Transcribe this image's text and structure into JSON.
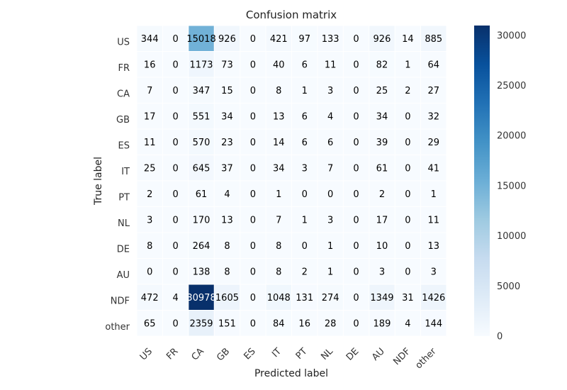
{
  "chart_data": {
    "type": "heatmap",
    "title": "Confusion matrix",
    "xlabel": "Predicted label",
    "ylabel": "True label",
    "x_categories": [
      "US",
      "FR",
      "CA",
      "GB",
      "ES",
      "IT",
      "PT",
      "NL",
      "DE",
      "AU",
      "NDF",
      "other"
    ],
    "y_categories": [
      "US",
      "FR",
      "CA",
      "GB",
      "ES",
      "IT",
      "PT",
      "NL",
      "DE",
      "AU",
      "NDF",
      "other"
    ],
    "values": [
      [
        344,
        0,
        15018,
        926,
        0,
        421,
        97,
        133,
        0,
        926,
        14,
        885
      ],
      [
        16,
        0,
        1173,
        73,
        0,
        40,
        6,
        11,
        0,
        82,
        1,
        64
      ],
      [
        7,
        0,
        347,
        15,
        0,
        8,
        1,
        3,
        0,
        25,
        2,
        27
      ],
      [
        17,
        0,
        551,
        34,
        0,
        13,
        6,
        4,
        0,
        34,
        0,
        32
      ],
      [
        11,
        0,
        570,
        23,
        0,
        14,
        6,
        6,
        0,
        39,
        0,
        29
      ],
      [
        25,
        0,
        645,
        37,
        0,
        34,
        3,
        7,
        0,
        61,
        0,
        41
      ],
      [
        2,
        0,
        61,
        4,
        0,
        1,
        0,
        0,
        0,
        2,
        0,
        1
      ],
      [
        3,
        0,
        170,
        13,
        0,
        7,
        1,
        3,
        0,
        17,
        0,
        11
      ],
      [
        8,
        0,
        264,
        8,
        0,
        8,
        0,
        1,
        0,
        10,
        0,
        13
      ],
      [
        0,
        0,
        138,
        8,
        0,
        8,
        2,
        1,
        0,
        3,
        0,
        3
      ],
      [
        472,
        4,
        30978,
        1605,
        0,
        1048,
        131,
        274,
        0,
        1349,
        31,
        1426
      ],
      [
        65,
        0,
        2359,
        151,
        0,
        84,
        16,
        28,
        0,
        189,
        4,
        144
      ]
    ],
    "colorbar": {
      "min": 0,
      "max": 30978,
      "ticks": [
        0,
        5000,
        10000,
        15000,
        20000,
        25000,
        30000
      ],
      "colormap": "Blues",
      "colors": [
        "#f7fbff",
        "#deebf7",
        "#c6dbef",
        "#9ecae1",
        "#6baed6",
        "#4292c6",
        "#2171b5",
        "#08519c",
        "#08306b"
      ]
    },
    "grid": true,
    "grid_color": "#ffffff"
  }
}
